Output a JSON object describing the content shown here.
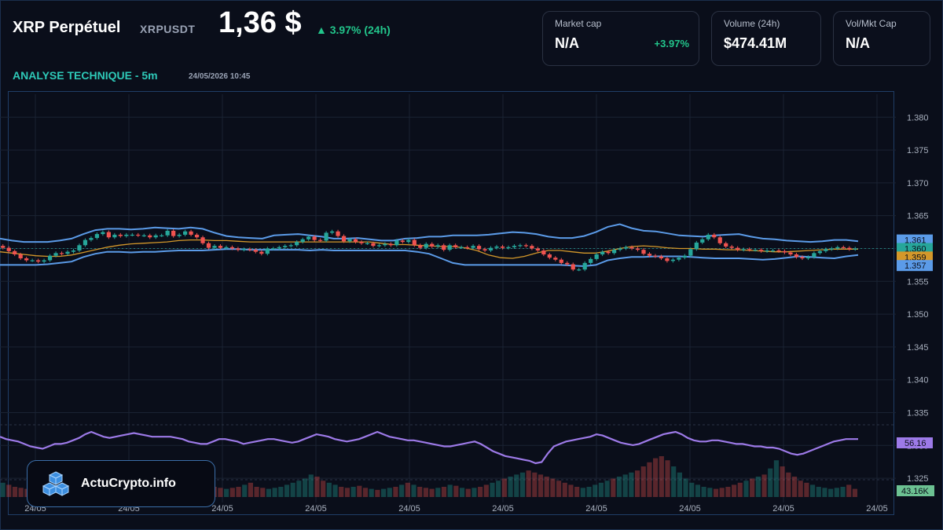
{
  "header": {
    "title": "XRP Perpétuel",
    "ticker": "XRPUSDT",
    "price": "1,36 $",
    "change": "▲ 3.97% (24h)",
    "analysis": "ANALYSE TECHNIQUE - 5m",
    "timestamp": "24/05/2026 10:45"
  },
  "cards": [
    {
      "label": "Market cap",
      "value": "N/A",
      "sub": "+3.97%"
    },
    {
      "label": "Volume (24h)",
      "value": "$474.41M"
    },
    {
      "label": "Vol/Mkt Cap",
      "value": "N/A"
    }
  ],
  "logo": {
    "text": "ActuCrypto.info"
  },
  "colors": {
    "up": "#26a69a",
    "down": "#ef5350",
    "band": "#5b9be8",
    "ma": "#d4982a",
    "rsi": "#9d7ae8",
    "accent": "#2ec9b8"
  },
  "chart_data": {
    "type": "candlestick",
    "price_axis": {
      "ticks": [
        "1.380",
        "1.375",
        "1.370",
        "1.365",
        "1.360",
        "1.355",
        "1.350",
        "1.345",
        "1.340",
        "1.335",
        "1.330",
        "1.325"
      ],
      "range": [
        1.3225,
        1.3835
      ]
    },
    "price_tags": [
      {
        "label": "1.361",
        "value": 1.3613,
        "color": "#5b9be8"
      },
      {
        "label": "1.360",
        "value": 1.36,
        "color": "#26a69a"
      },
      {
        "label": "1.359",
        "value": 1.3587,
        "color": "#d4982a"
      },
      {
        "label": "1.357",
        "value": 1.3574,
        "color": "#5b9be8"
      }
    ],
    "x_labels": [
      "24/05",
      "24/05",
      "24/05",
      "24/05",
      "24/05",
      "24/05",
      "24/05",
      "24/05",
      "24/05",
      "24/05"
    ],
    "closes": [
      1.3601,
      1.3596,
      1.3591,
      1.3585,
      1.3582,
      1.3582,
      1.358,
      1.3582,
      1.3589,
      1.3593,
      1.3592,
      1.3595,
      1.3597,
      1.3605,
      1.3613,
      1.3616,
      1.3622,
      1.3625,
      1.3617,
      1.3621,
      1.3619,
      1.3621,
      1.3621,
      1.362,
      1.362,
      1.3617,
      1.362,
      1.362,
      1.3627,
      1.3619,
      1.3621,
      1.3626,
      1.3621,
      1.3617,
      1.3608,
      1.3601,
      1.3604,
      1.3601,
      1.3602,
      1.36,
      1.3598,
      1.3599,
      1.3598,
      1.3595,
      1.3592,
      1.36,
      1.36,
      1.3602,
      1.3604,
      1.3605,
      1.361,
      1.3614,
      1.3618,
      1.3613,
      1.3612,
      1.3624,
      1.3626,
      1.3619,
      1.3611,
      1.3614,
      1.361,
      1.3608,
      1.3608,
      1.3604,
      1.3605,
      1.3607,
      1.3605,
      1.3612,
      1.361,
      1.3613,
      1.3605,
      1.3601,
      1.3607,
      1.3603,
      1.3605,
      1.3598,
      1.3605,
      1.3602,
      1.3602,
      1.3601,
      1.3604,
      1.3599,
      1.3597,
      1.3601,
      1.3603,
      1.3601,
      1.3602,
      1.3604,
      1.3605,
      1.3604,
      1.36,
      1.3597,
      1.3591,
      1.3586,
      1.3583,
      1.3578,
      1.3576,
      1.3568,
      1.3568,
      1.3578,
      1.3584,
      1.3591,
      1.3595,
      1.3593,
      1.3598,
      1.36,
      1.3602,
      1.36,
      1.3598,
      1.3592,
      1.3589,
      1.3588,
      1.3585,
      1.3581,
      1.3583,
      1.3586,
      1.3589,
      1.3599,
      1.3609,
      1.3614,
      1.3621,
      1.3617,
      1.3608,
      1.3603,
      1.3601,
      1.3598,
      1.3599,
      1.3598,
      1.3598,
      1.3596,
      1.3597,
      1.3597,
      1.3596,
      1.3594,
      1.3591,
      1.3587,
      1.3585,
      1.3587,
      1.3593,
      1.3596,
      1.3599,
      1.36,
      1.3602,
      1.3601,
      1.3599,
      1.36
    ],
    "bb_upper": [
      1.3615,
      1.3612,
      1.361,
      1.361,
      1.361,
      1.3612,
      1.3615,
      1.3622,
      1.3628,
      1.363,
      1.363,
      1.3629,
      1.363,
      1.3632,
      1.3631,
      1.363,
      1.3632,
      1.363,
      1.3624,
      1.3619,
      1.3617,
      1.3616,
      1.3615,
      1.362,
      1.3621,
      1.3622,
      1.362,
      1.3618,
      1.3615,
      1.3615,
      1.3616,
      1.3614,
      1.3612,
      1.3612,
      1.3615,
      1.3616,
      1.3618,
      1.3618,
      1.362,
      1.362,
      1.362,
      1.3621,
      1.3623,
      1.3625,
      1.3624,
      1.3622,
      1.3618,
      1.3616,
      1.3616,
      1.3619,
      1.3625,
      1.3633,
      1.3637,
      1.3631,
      1.3627,
      1.3626,
      1.3623,
      1.362,
      1.3619,
      1.3618,
      1.362,
      1.3621,
      1.3622,
      1.3618,
      1.3615,
      1.3614,
      1.3612,
      1.3611,
      1.361,
      1.3611,
      1.3613,
      1.3613,
      1.3611
    ],
    "bb_lower": [
      1.3575,
      1.3575,
      1.3575,
      1.3575,
      1.3576,
      1.3578,
      1.358,
      1.3587,
      1.3592,
      1.3595,
      1.3595,
      1.3594,
      1.3595,
      1.3595,
      1.3596,
      1.3597,
      1.3597,
      1.3597,
      1.3598,
      1.3599,
      1.3599,
      1.3598,
      1.3598,
      1.3598,
      1.3598,
      1.3598,
      1.3597,
      1.3598,
      1.3597,
      1.3597,
      1.3597,
      1.3597,
      1.3597,
      1.3597,
      1.3597,
      1.3595,
      1.3592,
      1.3585,
      1.3578,
      1.3575,
      1.3575,
      1.3575,
      1.3575,
      1.3575,
      1.3575,
      1.3575,
      1.3575,
      1.3575,
      1.3574,
      1.3573,
      1.3575,
      1.3582,
      1.3585,
      1.3587,
      1.3587,
      1.3588,
      1.3588,
      1.3588,
      1.3587,
      1.3586,
      1.3585,
      1.3585,
      1.3585,
      1.3584,
      1.3583,
      1.3584,
      1.3586,
      1.3588,
      1.3587,
      1.3586,
      1.3585,
      1.3588,
      1.359
    ],
    "ma": [
      1.3595,
      1.3593,
      1.3591,
      1.3589,
      1.3588,
      1.3588,
      1.359,
      1.3594,
      1.3598,
      1.3602,
      1.3605,
      1.3607,
      1.3608,
      1.3609,
      1.361,
      1.3612,
      1.3613,
      1.3613,
      1.3612,
      1.3612,
      1.3611,
      1.361,
      1.361,
      1.361,
      1.361,
      1.361,
      1.361,
      1.361,
      1.361,
      1.361,
      1.361,
      1.361,
      1.3608,
      1.3606,
      1.3606,
      1.3605,
      1.3604,
      1.3603,
      1.3603,
      1.3601,
      1.3597,
      1.359,
      1.3586,
      1.3585,
      1.3588,
      1.3593,
      1.3597,
      1.3597,
      1.3595,
      1.3593,
      1.3593,
      1.3596,
      1.36,
      1.3603,
      1.3604,
      1.3603,
      1.3601,
      1.36,
      1.36,
      1.3599,
      1.3599,
      1.3598,
      1.3598,
      1.3597,
      1.3596,
      1.3595,
      1.3595,
      1.3596,
      1.3597,
      1.3598,
      1.3599,
      1.3599,
      1.3599
    ],
    "rsi": {
      "label": "56.16",
      "values": [
        58,
        56,
        55,
        54,
        52,
        50,
        49,
        48,
        50,
        52,
        52,
        53,
        55,
        57,
        60,
        62,
        60,
        58,
        57,
        58,
        59,
        60,
        61,
        60,
        59,
        58,
        58,
        58,
        58,
        57,
        56,
        54,
        53,
        52,
        52,
        54,
        56,
        56,
        55,
        54,
        52,
        53,
        54,
        55,
        56,
        56,
        55,
        54,
        53,
        54,
        56,
        58,
        60,
        59,
        58,
        56,
        55,
        54,
        55,
        56,
        58,
        60,
        62,
        60,
        58,
        57,
        56,
        55,
        55,
        54,
        53,
        52,
        51,
        50,
        50,
        51,
        52,
        53,
        54,
        52,
        49,
        46,
        44,
        42,
        41,
        40,
        39,
        38,
        36,
        37,
        44,
        50,
        52,
        54,
        55,
        56,
        57,
        58,
        60,
        59,
        57,
        55,
        53,
        52,
        51,
        52,
        54,
        56,
        58,
        60,
        61,
        62,
        60,
        57,
        55,
        54,
        54,
        55,
        55,
        54,
        53,
        52,
        52,
        51,
        50,
        50,
        49,
        49,
        48,
        46,
        44,
        43,
        44,
        46,
        48,
        50,
        52,
        54,
        55,
        56,
        56,
        56
      ]
    },
    "volume": {
      "label": "43.16K",
      "values": [
        14,
        12,
        10,
        9,
        8,
        10,
        9,
        8,
        9,
        12,
        14,
        16,
        16,
        18,
        14,
        12,
        10,
        9,
        8,
        9,
        10,
        12,
        10,
        9,
        8,
        7,
        8,
        9,
        10,
        12,
        11,
        9,
        8,
        10,
        12,
        10,
        9,
        8,
        9,
        10,
        12,
        14,
        10,
        9,
        8,
        9,
        10,
        12,
        14,
        16,
        18,
        22,
        20,
        16,
        14,
        12,
        10,
        9,
        10,
        11,
        9,
        8,
        7,
        8,
        9,
        10,
        12,
        14,
        12,
        10,
        9,
        8,
        9,
        10,
        12,
        11,
        9,
        8,
        9,
        10,
        12,
        14,
        16,
        18,
        20,
        22,
        24,
        26,
        24,
        22,
        20,
        18,
        16,
        14,
        12,
        10,
        9,
        10,
        12,
        14,
        16,
        18,
        20,
        22,
        24,
        26,
        30,
        34,
        38,
        40,
        36,
        30,
        24,
        18,
        14,
        12,
        10,
        9,
        8,
        9,
        10,
        12,
        14,
        16,
        18,
        20,
        22,
        28,
        36,
        30,
        24,
        20,
        16,
        14,
        12,
        10,
        9,
        8,
        9,
        10,
        12,
        8
      ]
    }
  }
}
